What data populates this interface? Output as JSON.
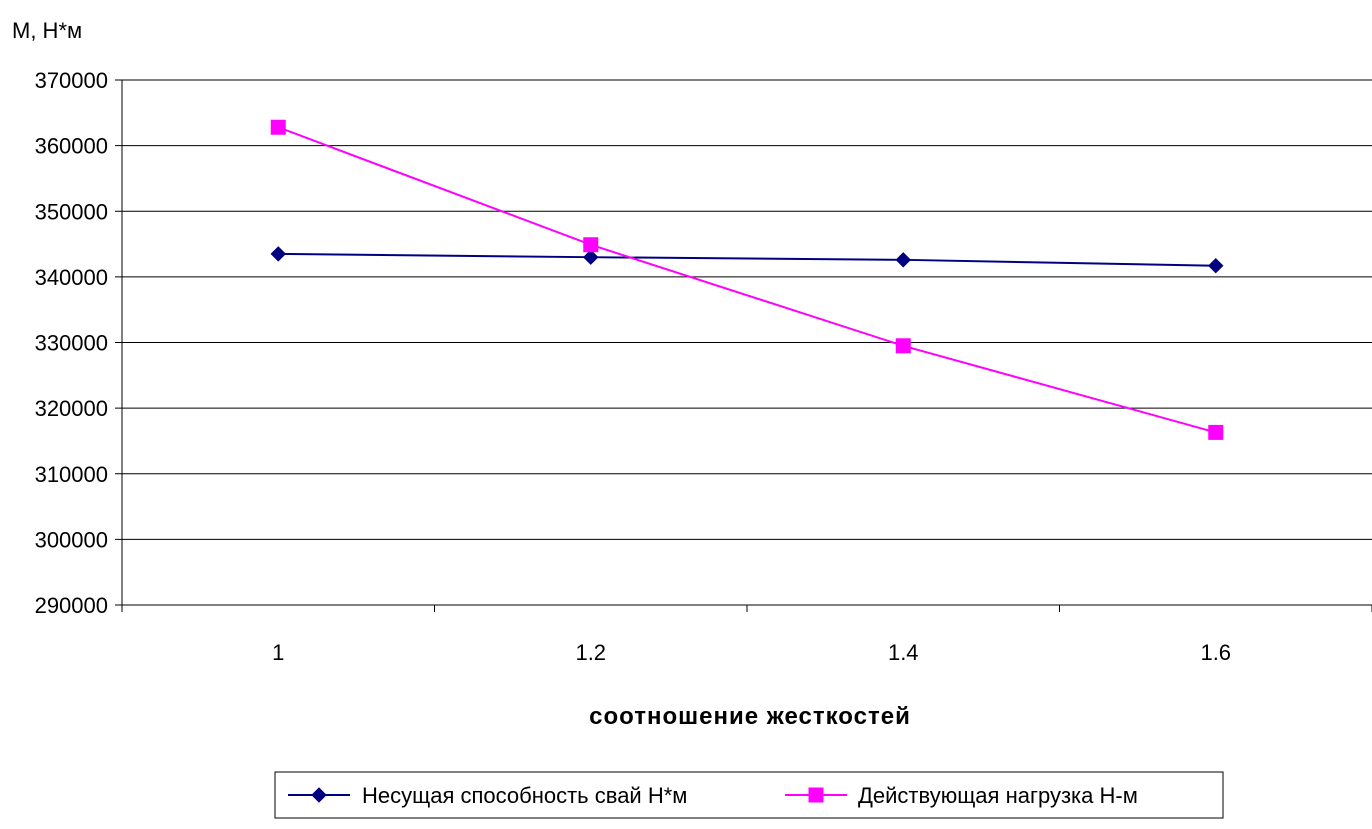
{
  "chart_data": {
    "type": "line",
    "title": "",
    "ylabel": "M, Н*м",
    "xlabel": "соотношение жесткостей",
    "categories": [
      "1",
      "1.2",
      "1.4",
      "1.6"
    ],
    "ylim": [
      290000,
      370000
    ],
    "ytick_step": 10000,
    "grid": "horizontal",
    "legend_position": "bottom",
    "series": [
      {
        "name": "Несущая способность свай Н*м",
        "color": "#000080",
        "marker": "diamond",
        "values": [
          343500,
          343000,
          342600,
          341700
        ]
      },
      {
        "name": "Действующая нагрузка Н-м",
        "color": "#FF00FF",
        "marker": "square",
        "values": [
          362800,
          344900,
          329500,
          316300
        ]
      }
    ]
  }
}
